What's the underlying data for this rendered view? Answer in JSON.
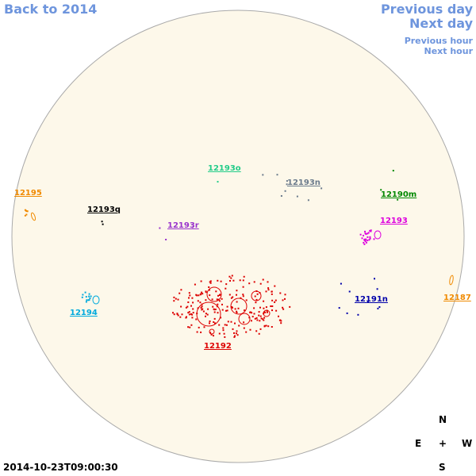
{
  "nav": {
    "back": "Back to 2014",
    "previous_day": "Previous day",
    "next_day": "Next day",
    "previous_hour": "Previous hour",
    "next_hour": "Next hour"
  },
  "disk": {
    "fill": "#fdf8ea",
    "stroke": "#aaaaaa"
  },
  "regions": [
    {
      "id": "12195",
      "label": "12195",
      "color": "#f08a00"
    },
    {
      "id": "12193o",
      "label": "12193o",
      "color": "#22cc88"
    },
    {
      "id": "12193n",
      "label": "12193n",
      "color": "#6b7b8c"
    },
    {
      "id": "12190m",
      "label": "12190m",
      "color": "#008800"
    },
    {
      "id": "12193q",
      "label": "12193q",
      "color": "#000000"
    },
    {
      "id": "12193r",
      "label": "12193r",
      "color": "#9933cc"
    },
    {
      "id": "12193",
      "label": "12193",
      "color": "#dd00dd"
    },
    {
      "id": "12194",
      "label": "12194",
      "color": "#00aadd"
    },
    {
      "id": "12191n",
      "label": "12191n",
      "color": "#0000aa"
    },
    {
      "id": "12187",
      "label": "12187",
      "color": "#f08a00"
    },
    {
      "id": "12192",
      "label": "12192",
      "color": "#dd0000"
    }
  ],
  "compass": {
    "north": "N",
    "south": "S",
    "east": "E",
    "west": "W",
    "center": "+"
  },
  "timestamp": "2014-10-23T09:00:30"
}
